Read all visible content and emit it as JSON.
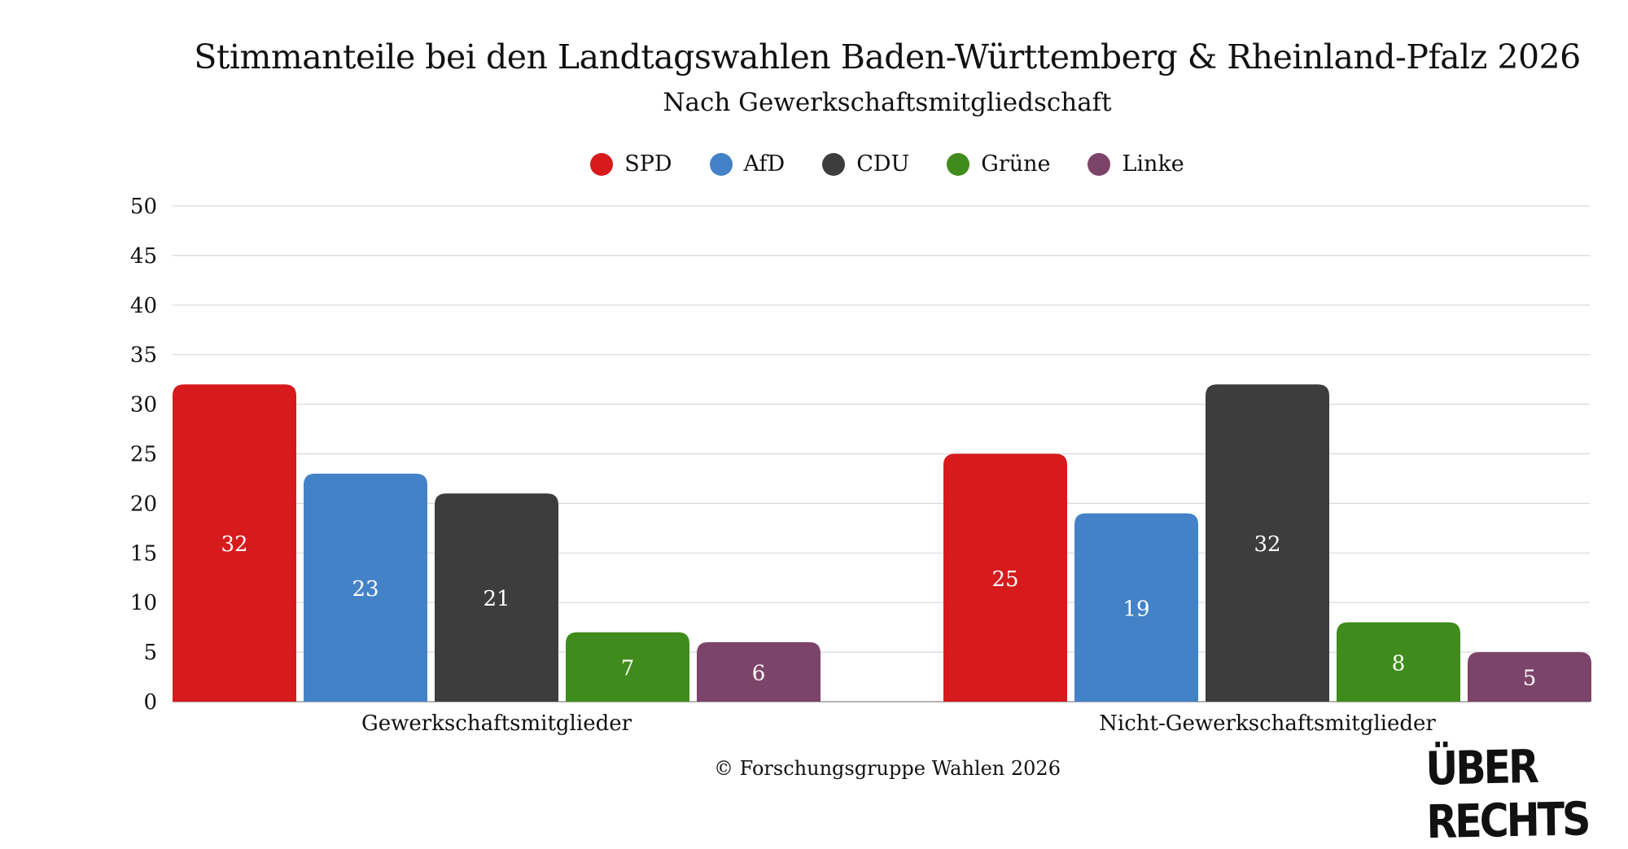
{
  "title": "Stimmanteile bei den Landtagswahlen Baden-Württemberg & Rheinland-Pfalz 2026",
  "subtitle": "Nach Gewerkschaftsmitgliedschaft",
  "footer": "© Forschungsgruppe Wahlen 2026",
  "brand": "ÜBER RECHTS",
  "legend": [
    {
      "label": "SPD",
      "color": "#d71a1c"
    },
    {
      "label": "AfD",
      "color": "#4482c8"
    },
    {
      "label": "CDU",
      "color": "#3d3d3d"
    },
    {
      "label": "Grüne",
      "color": "#3f8c1c"
    },
    {
      "label": "Linke",
      "color": "#7d4469"
    }
  ],
  "chart_data": {
    "type": "bar",
    "title": "Stimmanteile bei den Landtagswahlen Baden-Württemberg & Rheinland-Pfalz 2026",
    "subtitle": "Nach Gewerkschaftsmitgliedschaft",
    "categories": [
      "Gewerkschaftsmitglieder",
      "Nicht-Gewerkschaftsmitglieder"
    ],
    "series": [
      {
        "name": "SPD",
        "color": "#d71a1c",
        "values": [
          32,
          25
        ]
      },
      {
        "name": "AfD",
        "color": "#4482c8",
        "values": [
          23,
          19
        ]
      },
      {
        "name": "CDU",
        "color": "#3d3d3d",
        "values": [
          21,
          32
        ]
      },
      {
        "name": "Grüne",
        "color": "#3f8c1c",
        "values": [
          7,
          8
        ]
      },
      {
        "name": "Linke",
        "color": "#7d4469",
        "values": [
          6,
          5
        ]
      }
    ],
    "ylim": [
      0,
      50
    ],
    "yticks": [
      0,
      5,
      10,
      15,
      20,
      25,
      30,
      35,
      40,
      45,
      50
    ],
    "grid": true,
    "legend_position": "top-center",
    "xlabel": "",
    "ylabel": ""
  }
}
